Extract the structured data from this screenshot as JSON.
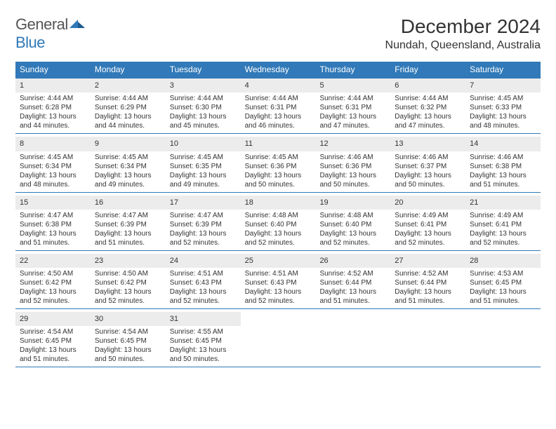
{
  "brand": {
    "word1": "General",
    "word2": "Blue"
  },
  "title": "December 2024",
  "location": "Nundah, Queensland, Australia",
  "colors": {
    "header_bg": "#3179b8",
    "header_text": "#ffffff",
    "daynum_bg": "#ececec",
    "text": "#333333",
    "rule": "#3179b8"
  },
  "fonts": {
    "title_pt": 28,
    "location_pt": 16,
    "weekday_pt": 12,
    "body_pt": 10
  },
  "weekdays": [
    "Sunday",
    "Monday",
    "Tuesday",
    "Wednesday",
    "Thursday",
    "Friday",
    "Saturday"
  ],
  "weeks": [
    [
      {
        "n": "1",
        "sunrise": "Sunrise: 4:44 AM",
        "sunset": "Sunset: 6:28 PM",
        "daylight1": "Daylight: 13 hours",
        "daylight2": "and 44 minutes."
      },
      {
        "n": "2",
        "sunrise": "Sunrise: 4:44 AM",
        "sunset": "Sunset: 6:29 PM",
        "daylight1": "Daylight: 13 hours",
        "daylight2": "and 44 minutes."
      },
      {
        "n": "3",
        "sunrise": "Sunrise: 4:44 AM",
        "sunset": "Sunset: 6:30 PM",
        "daylight1": "Daylight: 13 hours",
        "daylight2": "and 45 minutes."
      },
      {
        "n": "4",
        "sunrise": "Sunrise: 4:44 AM",
        "sunset": "Sunset: 6:31 PM",
        "daylight1": "Daylight: 13 hours",
        "daylight2": "and 46 minutes."
      },
      {
        "n": "5",
        "sunrise": "Sunrise: 4:44 AM",
        "sunset": "Sunset: 6:31 PM",
        "daylight1": "Daylight: 13 hours",
        "daylight2": "and 47 minutes."
      },
      {
        "n": "6",
        "sunrise": "Sunrise: 4:44 AM",
        "sunset": "Sunset: 6:32 PM",
        "daylight1": "Daylight: 13 hours",
        "daylight2": "and 47 minutes."
      },
      {
        "n": "7",
        "sunrise": "Sunrise: 4:45 AM",
        "sunset": "Sunset: 6:33 PM",
        "daylight1": "Daylight: 13 hours",
        "daylight2": "and 48 minutes."
      }
    ],
    [
      {
        "n": "8",
        "sunrise": "Sunrise: 4:45 AM",
        "sunset": "Sunset: 6:34 PM",
        "daylight1": "Daylight: 13 hours",
        "daylight2": "and 48 minutes."
      },
      {
        "n": "9",
        "sunrise": "Sunrise: 4:45 AM",
        "sunset": "Sunset: 6:34 PM",
        "daylight1": "Daylight: 13 hours",
        "daylight2": "and 49 minutes."
      },
      {
        "n": "10",
        "sunrise": "Sunrise: 4:45 AM",
        "sunset": "Sunset: 6:35 PM",
        "daylight1": "Daylight: 13 hours",
        "daylight2": "and 49 minutes."
      },
      {
        "n": "11",
        "sunrise": "Sunrise: 4:45 AM",
        "sunset": "Sunset: 6:36 PM",
        "daylight1": "Daylight: 13 hours",
        "daylight2": "and 50 minutes."
      },
      {
        "n": "12",
        "sunrise": "Sunrise: 4:46 AM",
        "sunset": "Sunset: 6:36 PM",
        "daylight1": "Daylight: 13 hours",
        "daylight2": "and 50 minutes."
      },
      {
        "n": "13",
        "sunrise": "Sunrise: 4:46 AM",
        "sunset": "Sunset: 6:37 PM",
        "daylight1": "Daylight: 13 hours",
        "daylight2": "and 50 minutes."
      },
      {
        "n": "14",
        "sunrise": "Sunrise: 4:46 AM",
        "sunset": "Sunset: 6:38 PM",
        "daylight1": "Daylight: 13 hours",
        "daylight2": "and 51 minutes."
      }
    ],
    [
      {
        "n": "15",
        "sunrise": "Sunrise: 4:47 AM",
        "sunset": "Sunset: 6:38 PM",
        "daylight1": "Daylight: 13 hours",
        "daylight2": "and 51 minutes."
      },
      {
        "n": "16",
        "sunrise": "Sunrise: 4:47 AM",
        "sunset": "Sunset: 6:39 PM",
        "daylight1": "Daylight: 13 hours",
        "daylight2": "and 51 minutes."
      },
      {
        "n": "17",
        "sunrise": "Sunrise: 4:47 AM",
        "sunset": "Sunset: 6:39 PM",
        "daylight1": "Daylight: 13 hours",
        "daylight2": "and 52 minutes."
      },
      {
        "n": "18",
        "sunrise": "Sunrise: 4:48 AM",
        "sunset": "Sunset: 6:40 PM",
        "daylight1": "Daylight: 13 hours",
        "daylight2": "and 52 minutes."
      },
      {
        "n": "19",
        "sunrise": "Sunrise: 4:48 AM",
        "sunset": "Sunset: 6:40 PM",
        "daylight1": "Daylight: 13 hours",
        "daylight2": "and 52 minutes."
      },
      {
        "n": "20",
        "sunrise": "Sunrise: 4:49 AM",
        "sunset": "Sunset: 6:41 PM",
        "daylight1": "Daylight: 13 hours",
        "daylight2": "and 52 minutes."
      },
      {
        "n": "21",
        "sunrise": "Sunrise: 4:49 AM",
        "sunset": "Sunset: 6:41 PM",
        "daylight1": "Daylight: 13 hours",
        "daylight2": "and 52 minutes."
      }
    ],
    [
      {
        "n": "22",
        "sunrise": "Sunrise: 4:50 AM",
        "sunset": "Sunset: 6:42 PM",
        "daylight1": "Daylight: 13 hours",
        "daylight2": "and 52 minutes."
      },
      {
        "n": "23",
        "sunrise": "Sunrise: 4:50 AM",
        "sunset": "Sunset: 6:42 PM",
        "daylight1": "Daylight: 13 hours",
        "daylight2": "and 52 minutes."
      },
      {
        "n": "24",
        "sunrise": "Sunrise: 4:51 AM",
        "sunset": "Sunset: 6:43 PM",
        "daylight1": "Daylight: 13 hours",
        "daylight2": "and 52 minutes."
      },
      {
        "n": "25",
        "sunrise": "Sunrise: 4:51 AM",
        "sunset": "Sunset: 6:43 PM",
        "daylight1": "Daylight: 13 hours",
        "daylight2": "and 52 minutes."
      },
      {
        "n": "26",
        "sunrise": "Sunrise: 4:52 AM",
        "sunset": "Sunset: 6:44 PM",
        "daylight1": "Daylight: 13 hours",
        "daylight2": "and 51 minutes."
      },
      {
        "n": "27",
        "sunrise": "Sunrise: 4:52 AM",
        "sunset": "Sunset: 6:44 PM",
        "daylight1": "Daylight: 13 hours",
        "daylight2": "and 51 minutes."
      },
      {
        "n": "28",
        "sunrise": "Sunrise: 4:53 AM",
        "sunset": "Sunset: 6:45 PM",
        "daylight1": "Daylight: 13 hours",
        "daylight2": "and 51 minutes."
      }
    ],
    [
      {
        "n": "29",
        "sunrise": "Sunrise: 4:54 AM",
        "sunset": "Sunset: 6:45 PM",
        "daylight1": "Daylight: 13 hours",
        "daylight2": "and 51 minutes."
      },
      {
        "n": "30",
        "sunrise": "Sunrise: 4:54 AM",
        "sunset": "Sunset: 6:45 PM",
        "daylight1": "Daylight: 13 hours",
        "daylight2": "and 50 minutes."
      },
      {
        "n": "31",
        "sunrise": "Sunrise: 4:55 AM",
        "sunset": "Sunset: 6:45 PM",
        "daylight1": "Daylight: 13 hours",
        "daylight2": "and 50 minutes."
      },
      {
        "empty": true
      },
      {
        "empty": true
      },
      {
        "empty": true
      },
      {
        "empty": true
      }
    ]
  ]
}
